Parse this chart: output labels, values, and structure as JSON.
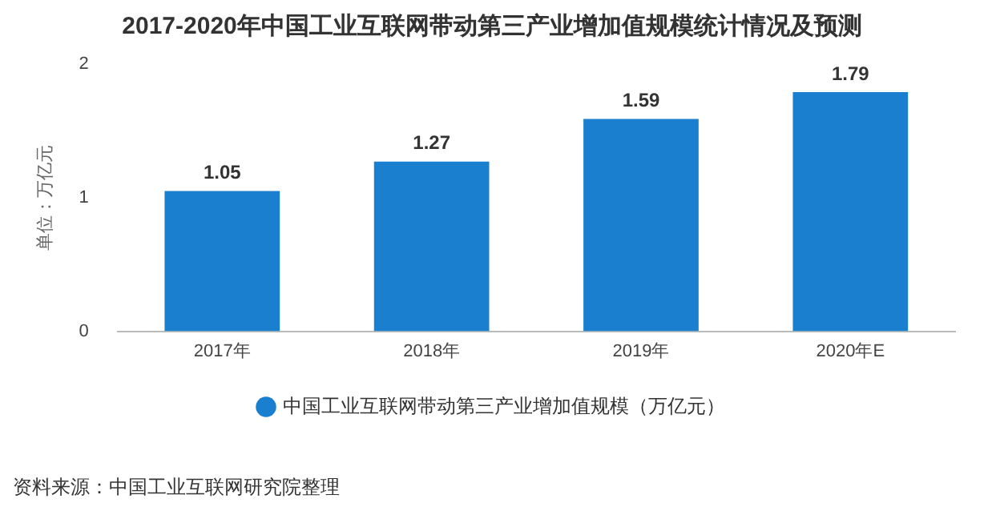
{
  "chart_data": {
    "type": "bar",
    "title": "2017-2020年中国工业互联网带动第三产业增加值规模统计情况及预测",
    "categories": [
      "2017年",
      "2018年",
      "2019年",
      "2020年E"
    ],
    "series": [
      {
        "name": "中国工业互联网带动第三产业增加值规模（万亿元）",
        "color": "#1b7fd0",
        "values": [
          1.05,
          1.27,
          1.59,
          1.79
        ]
      }
    ],
    "ylabel": "单位：万亿元",
    "ylim": [
      0,
      2
    ],
    "yticks": [
      0,
      1,
      2
    ],
    "grid": false,
    "legend": "bottom",
    "data_labels": true,
    "annotations": [
      "资料来源：中国工业互联网研究院整理"
    ]
  }
}
